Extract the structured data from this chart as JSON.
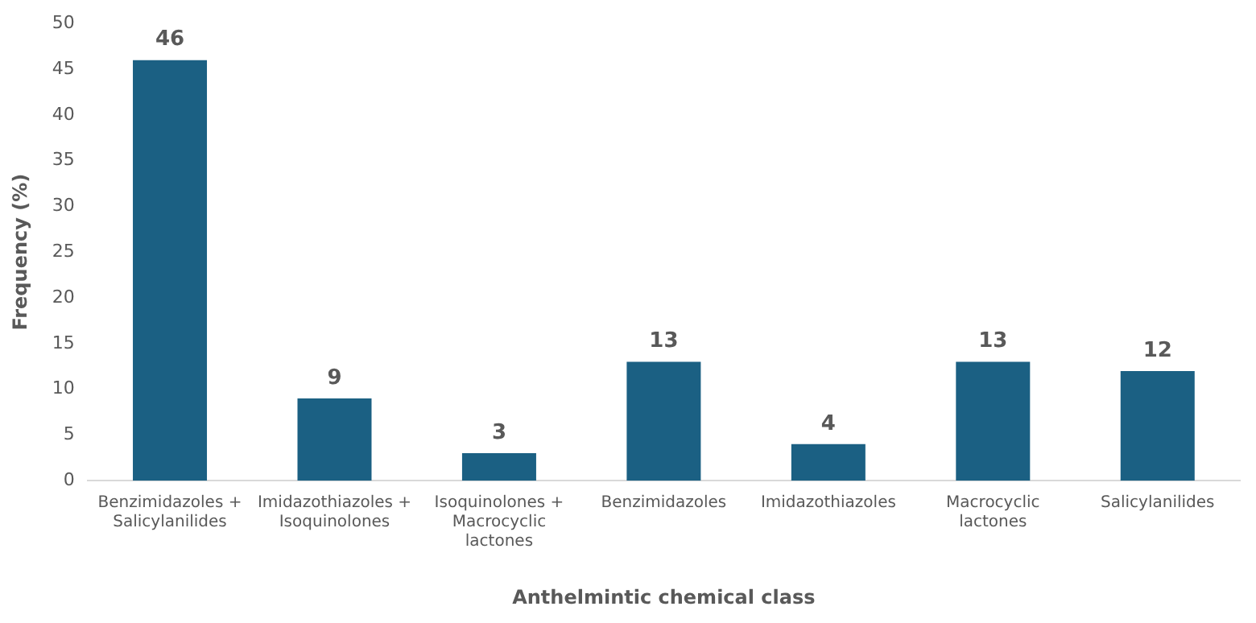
{
  "chart_data": {
    "type": "bar",
    "xlabel": "Anthelmintic chemical class",
    "ylabel": "Frequency (%)",
    "categories": [
      "Benzimidazoles + Salicylanilides",
      "Imidazothiazoles + Isoquinolones",
      "Isoquinolones + Macrocyclic lactones",
      "Benzimidazoles",
      "Imidazothiazoles",
      "Macrocyclic lactones",
      "Salicylanilides"
    ],
    "values": [
      46,
      9,
      3,
      13,
      4,
      13,
      12
    ],
    "color": "#1b6083",
    "ylim": [
      0,
      50
    ],
    "yticks": [
      0,
      5,
      10,
      15,
      20,
      25,
      30,
      35,
      40,
      45,
      50
    ],
    "grid": false,
    "data_labels": true
  }
}
